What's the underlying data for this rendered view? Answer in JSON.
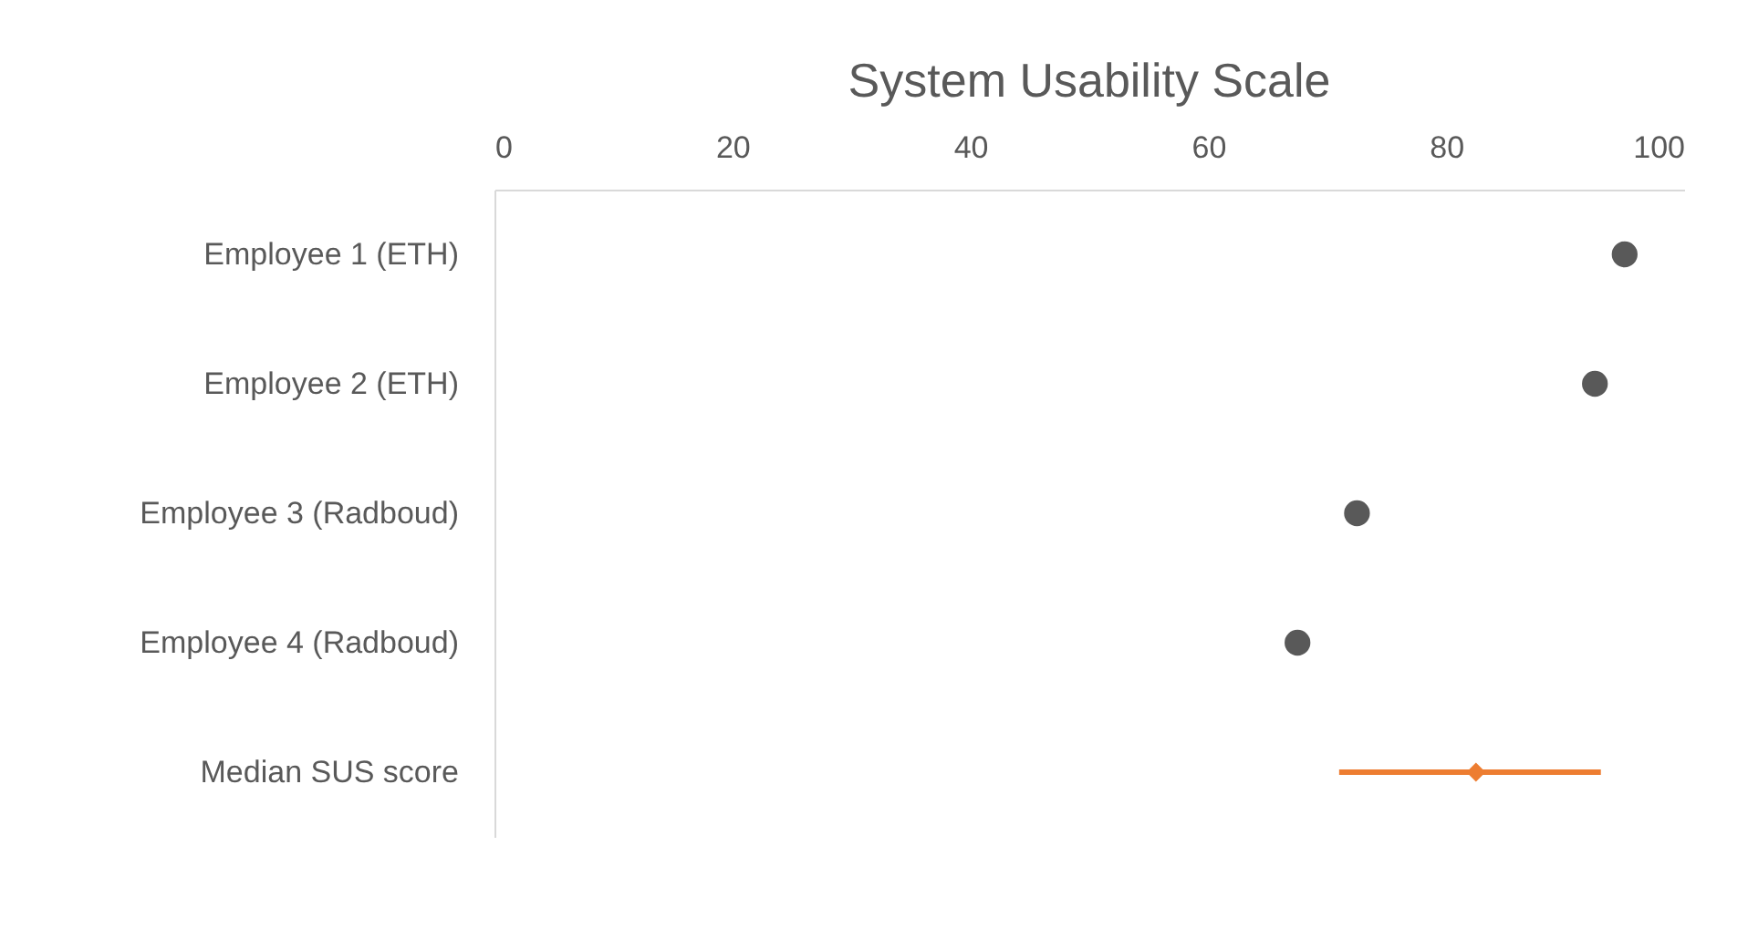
{
  "chart_data": {
    "type": "scatter",
    "title": "System Usability Scale",
    "orientation": "horizontal",
    "categories": [
      "Employee 1 (ETH)",
      "Employee 2 (ETH)",
      "Employee 3 (Radboud)",
      "Employee 4 (Radboud)",
      "Median SUS score"
    ],
    "series": [
      {
        "color": "#595959",
        "marker": "circle",
        "values": [
          95,
          92.5,
          72.5,
          67.5,
          null
        ]
      },
      {
        "color": "#ed7d31",
        "marker": "diamond",
        "values": [
          null,
          null,
          null,
          null,
          82.5
        ],
        "errors": [
          null,
          null,
          null,
          null,
          [
            71,
            93
          ]
        ]
      }
    ],
    "xlim": [
      0,
      100
    ],
    "xticks": [
      0,
      20,
      40,
      60,
      80,
      100
    ],
    "grid": false
  }
}
